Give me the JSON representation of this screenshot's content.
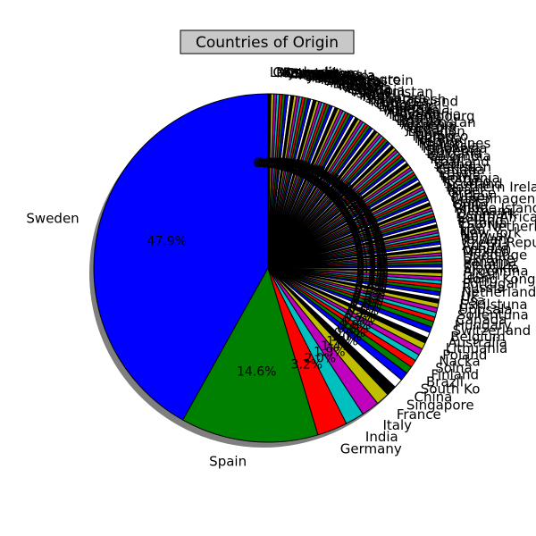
{
  "chart_data": {
    "type": "pie",
    "title": "Countries of Origin",
    "start_angle_deg": 90,
    "counterclock": true,
    "shadow": true,
    "colors": [
      "#0000ff",
      "#008000",
      "#ff0000",
      "#00bfbf",
      "#bf00bf",
      "#bfbf00",
      "#000000",
      "#ffffff"
    ],
    "slices": [
      {
        "label": "Sweden",
        "value": 47.9,
        "pct_label": "47.9%"
      },
      {
        "label": "Spain",
        "value": 14.6,
        "pct_label": "14.6%"
      },
      {
        "label": "Germany",
        "value": 3.2,
        "pct_label": "3.2%"
      },
      {
        "label": "India",
        "value": 2.0,
        "pct_label": "2.0%"
      },
      {
        "label": "Italy",
        "value": 1.9,
        "pct_label": "1.9%"
      },
      {
        "label": "France",
        "value": 1.4,
        "pct_label": "1.4%"
      },
      {
        "label": "Singapore",
        "value": 1.1,
        "pct_label": "1.1%"
      },
      {
        "label": "China",
        "value": 1.0,
        "pct_label": "1.0%"
      },
      {
        "label": "South Ko",
        "value": 0.9,
        "pct_label": "0.9%"
      },
      {
        "label": "Brazil",
        "value": 0.8,
        "pct_label": "0.8%"
      },
      {
        "label": "Finland",
        "value": 0.8,
        "pct_label": "0.8%"
      },
      {
        "label": "Solna",
        "value": 0.7,
        "pct_label": "0.7%"
      },
      {
        "label": "Nacka",
        "value": 0.7,
        "pct_label": "0.7%"
      },
      {
        "label": "Poland",
        "value": 0.7,
        "pct_label": "0.7%"
      },
      {
        "label": "Lithuania",
        "value": 0.6,
        "pct_label": "0.6%"
      },
      {
        "label": "Australia",
        "value": 0.6,
        "pct_label": "0.6%"
      },
      {
        "label": "Belgium",
        "value": 0.6,
        "pct_label": "0.6%"
      },
      {
        "label": "Switzerland",
        "value": 0.6,
        "pct_label": "0.6%"
      },
      {
        "label": "Hungary",
        "value": 0.5,
        "pct_label": "0.5%"
      },
      {
        "label": "Canada",
        "value": 0.5,
        "pct_label": "0.5%"
      },
      {
        "label": "Sollentuna",
        "value": 0.5,
        "pct_label": "0.5%"
      },
      {
        "label": "Uppsala",
        "value": 0.5,
        "pct_label": "0.5%"
      },
      {
        "label": "Eskilstuna",
        "value": 0.4,
        "pct_label": "0.4%"
      },
      {
        "label": "Usa",
        "value": 0.4,
        "pct_label": "0.4%"
      },
      {
        "label": "Uk",
        "value": 0.4,
        "pct_label": "0.4%"
      },
      {
        "label": "Netherland",
        "value": 0.4,
        "pct_label": "0.4%"
      },
      {
        "label": "Russia",
        "value": 0.4,
        "pct_label": "0.4%"
      },
      {
        "label": "Portugal",
        "value": 0.4,
        "pct_label": "0.4%"
      },
      {
        "label": "Hong Kong",
        "value": 0.4,
        "pct_label": "0.4%"
      },
      {
        "label": "Japan",
        "value": 0.4,
        "pct_label": "0.4%"
      },
      {
        "label": "Argentina",
        "value": 0.3,
        "pct_label": "0.3%"
      },
      {
        "label": "Slovakia",
        "value": 0.3,
        "pct_label": "0.3%"
      },
      {
        "label": "Belarus",
        "value": 0.3,
        "pct_label": "0.3%"
      },
      {
        "label": "Panama",
        "value": 0.3,
        "pct_label": "0.3%"
      },
      {
        "label": "Ukraine",
        "value": 0.3,
        "pct_label": "0.3%"
      },
      {
        "label": "Huddinge",
        "value": 0.3,
        "pct_label": "0.3%"
      },
      {
        "label": "Mexico",
        "value": 0.3,
        "pct_label": "0.3%"
      },
      {
        "label": "London",
        "value": 0.3,
        "pct_label": "0.3%"
      },
      {
        "label": "Austria",
        "value": 0.3,
        "pct_label": "0.3%"
      },
      {
        "label": "Czech Republic",
        "value": 0.3,
        "pct_label": "0.3%"
      },
      {
        "label": "Taiwan",
        "value": 0.3,
        "pct_label": "0.3%"
      },
      {
        "label": "Norway",
        "value": 0.3,
        "pct_label": "0.3%"
      },
      {
        "label": "New York",
        "value": 0.3,
        "pct_label": "0.3%"
      },
      {
        "label": "Iran",
        "value": 0.3,
        "pct_label": "0.3%"
      },
      {
        "label": "The Netherlands",
        "value": 0.3,
        "pct_label": "0.3%"
      },
      {
        "label": "Estonia",
        "value": 0.3,
        "pct_label": "0.3%"
      },
      {
        "label": "Ireland",
        "value": 0.3,
        "pct_label": "0.3%"
      },
      {
        "label": "South Africa",
        "value": 0.3,
        "pct_label": "0.3%"
      },
      {
        "label": "Denmark",
        "value": 0.3,
        "pct_label": "0.3%"
      },
      {
        "label": "Vietnam",
        "value": 0.3,
        "pct_label": "0.3%"
      },
      {
        "label": "Rhode Island",
        "value": 0.3,
        "pct_label": "0.3%"
      },
      {
        "label": "Chile",
        "value": 0.3,
        "pct_label": "0.3%"
      },
      {
        "label": "Malta",
        "value": 0.3,
        "pct_label": "0.3%"
      },
      {
        "label": "Copenhagen",
        "value": 0.3,
        "pct_label": "0.3%"
      },
      {
        "label": "Turkey",
        "value": 0.3,
        "pct_label": "0.3%"
      },
      {
        "label": "Greece",
        "value": 0.3,
        "pct_label": "0.3%"
      },
      {
        "label": "Israel",
        "value": 0.3,
        "pct_label": "0.3%"
      },
      {
        "label": "Northern Ireland",
        "value": 0.3,
        "pct_label": "0.3%"
      },
      {
        "label": "Scotland",
        "value": 0.3,
        "pct_label": "0.3%"
      },
      {
        "label": "Iceland",
        "value": 0.3,
        "pct_label": "0.3%"
      },
      {
        "label": "Romania",
        "value": 0.3,
        "pct_label": "0.3%"
      },
      {
        "label": "Latvia",
        "value": 0.3,
        "pct_label": "0.3%"
      },
      {
        "label": "Egypt",
        "value": 0.3,
        "pct_label": "0.3%"
      },
      {
        "label": "Croatia",
        "value": 0.3,
        "pct_label": "0.3%"
      },
      {
        "label": "Pakistan",
        "value": 0.3,
        "pct_label": "0.3%"
      },
      {
        "label": "Serbia",
        "value": 0.3,
        "pct_label": "0.3%"
      },
      {
        "label": "Thailand",
        "value": 0.3,
        "pct_label": "0.3%"
      },
      {
        "label": "Peru",
        "value": 0.3,
        "pct_label": "0.3%"
      },
      {
        "label": "Colombia",
        "value": 0.3,
        "pct_label": "0.3%"
      },
      {
        "label": "Bulgaria",
        "value": 0.3,
        "pct_label": "0.3%"
      },
      {
        "label": "Slovenia",
        "value": 0.3,
        "pct_label": "0.3%"
      },
      {
        "label": "Indonesia",
        "value": 0.3,
        "pct_label": "0.3%"
      },
      {
        "label": "Malaysia",
        "value": 0.3,
        "pct_label": "0.3%"
      },
      {
        "label": "Philippines",
        "value": 0.3,
        "pct_label": "0.3%"
      },
      {
        "label": "Kenya",
        "value": 0.3,
        "pct_label": "0.3%"
      },
      {
        "label": "Nigeria",
        "value": 0.3,
        "pct_label": "0.3%"
      },
      {
        "label": "Morocco",
        "value": 0.3,
        "pct_label": "0.3%"
      },
      {
        "label": "Tunisia",
        "value": 0.3,
        "pct_label": "0.3%"
      },
      {
        "label": "Lebanon",
        "value": 0.3,
        "pct_label": "0.3%"
      },
      {
        "label": "Jordan",
        "value": 0.3,
        "pct_label": "0.3%"
      },
      {
        "label": "Georgia",
        "value": 0.3,
        "pct_label": "0.3%"
      },
      {
        "label": "Armenia",
        "value": 0.3,
        "pct_label": "0.3%"
      },
      {
        "label": "Kazakhstan",
        "value": 0.3,
        "pct_label": "0.3%"
      },
      {
        "label": "Bosnia",
        "value": 0.3,
        "pct_label": "0.3%"
      },
      {
        "label": "Cyprus",
        "value": 0.3,
        "pct_label": "0.3%"
      },
      {
        "label": "Luxembourg",
        "value": 0.3,
        "pct_label": "0.3%"
      },
      {
        "label": "Macedonia",
        "value": 0.3,
        "pct_label": "0.3%"
      },
      {
        "label": "Albania",
        "value": 0.3,
        "pct_label": "0.3%"
      },
      {
        "label": "Moldova",
        "value": 0.3,
        "pct_label": "0.3%"
      },
      {
        "label": "Venezuela",
        "value": 0.3,
        "pct_label": "0.3%"
      },
      {
        "label": "Ecuador",
        "value": 0.3,
        "pct_label": "0.3%"
      },
      {
        "label": "Uruguay",
        "value": 0.3,
        "pct_label": "0.3%"
      },
      {
        "label": "Cuba",
        "value": 0.3,
        "pct_label": "0.3%"
      },
      {
        "label": "New Zealand",
        "value": 0.3,
        "pct_label": "0.3%"
      },
      {
        "label": "Bangladesh",
        "value": 0.3,
        "pct_label": "0.3%"
      },
      {
        "label": "Sri Lanka",
        "value": 0.3,
        "pct_label": "0.3%"
      },
      {
        "label": "Nepal",
        "value": 0.3,
        "pct_label": "0.3%"
      },
      {
        "label": "Iraq",
        "value": 0.3,
        "pct_label": "0.3%"
      },
      {
        "label": "Syria",
        "value": 0.3,
        "pct_label": "0.3%"
      },
      {
        "label": "Afghanistan",
        "value": 0.3,
        "pct_label": "0.3%"
      },
      {
        "label": "Ethiopia",
        "value": 0.3,
        "pct_label": "0.3%"
      },
      {
        "label": "Ghana",
        "value": 0.3,
        "pct_label": "0.3%"
      },
      {
        "label": "Algeria",
        "value": 0.3,
        "pct_label": "0.3%"
      },
      {
        "label": "Qatar",
        "value": 0.3,
        "pct_label": "0.3%"
      },
      {
        "label": "Kuwait",
        "value": 0.3,
        "pct_label": "0.3%"
      },
      {
        "label": "Oman",
        "value": 0.3,
        "pct_label": "0.3%"
      },
      {
        "label": "Bahrain",
        "value": 0.3,
        "pct_label": "0.3%"
      },
      {
        "label": "Monaco",
        "value": 0.3,
        "pct_label": "0.3%"
      },
      {
        "label": "Andorra",
        "value": 0.3,
        "pct_label": "0.3%"
      },
      {
        "label": "Liechtenstein",
        "value": 0.3,
        "pct_label": "0.3%"
      },
      {
        "label": "Montenegro",
        "value": 0.3,
        "pct_label": "0.3%"
      },
      {
        "label": "Kosovo",
        "value": 0.3,
        "pct_label": "0.3%"
      },
      {
        "label": "Bolivia",
        "value": 0.3,
        "pct_label": "0.3%"
      },
      {
        "label": "Paraguay",
        "value": 0.3,
        "pct_label": "0.3%"
      },
      {
        "label": "Jamaica",
        "value": 0.3,
        "pct_label": "0.3%"
      },
      {
        "label": "Costa Rica",
        "value": 0.3,
        "pct_label": "0.3%"
      },
      {
        "label": "Guatemala",
        "value": 0.3,
        "pct_label": "0.3%"
      },
      {
        "label": "Honduras",
        "value": 0.3,
        "pct_label": "0.3%"
      },
      {
        "label": "Uganda",
        "value": 0.3,
        "pct_label": "0.3%"
      },
      {
        "label": "Tanzania",
        "value": 0.3,
        "pct_label": "0.3%"
      },
      {
        "label": "Zimbabwe",
        "value": 0.3,
        "pct_label": "0.3%"
      },
      {
        "label": "Cameroon",
        "value": 0.3,
        "pct_label": "0.3%"
      },
      {
        "label": "Senegal",
        "value": 0.3,
        "pct_label": "0.3%"
      },
      {
        "label": "Mongolia",
        "value": 0.3,
        "pct_label": "0.3%"
      },
      {
        "label": "Myanmar",
        "value": 0.3,
        "pct_label": "0.3%"
      },
      {
        "label": "Cambodia",
        "value": 0.3,
        "pct_label": "0.3%"
      },
      {
        "label": "Laos",
        "value": 0.3,
        "pct_label": "0.3%"
      }
    ]
  }
}
